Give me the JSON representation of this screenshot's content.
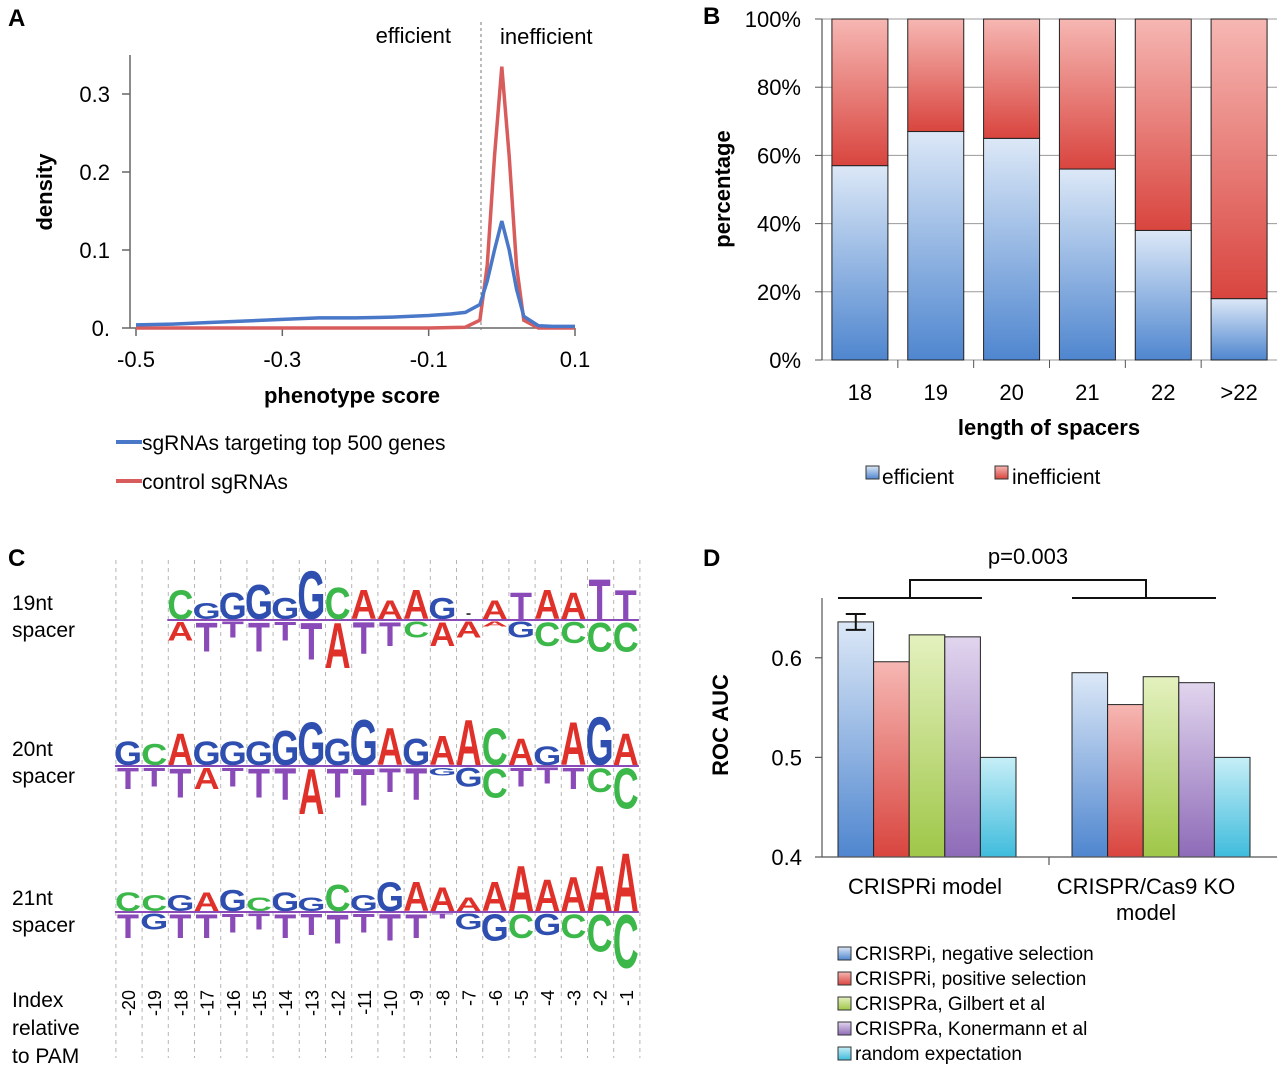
{
  "chart_data": [
    {
      "panel": "A",
      "type": "line",
      "xlabel": "phenotype score",
      "ylabel": "density",
      "xlim": [
        -0.5,
        0.1
      ],
      "ylim": [
        0,
        0.35
      ],
      "x_ticks": [
        "-0.5",
        "-0.3",
        "-0.1",
        "0.1"
      ],
      "y_ticks": [
        "0.",
        "0.1",
        "0.2",
        "0.3"
      ],
      "annotations": {
        "left_of_threshold": "efficient",
        "right_of_threshold": "inefficient",
        "threshold_x": -0.03
      },
      "series": [
        {
          "name": "sgRNAs targeting top 500 genes",
          "color": "#4a78c8",
          "x": [
            -0.5,
            -0.45,
            -0.4,
            -0.35,
            -0.3,
            -0.25,
            -0.2,
            -0.15,
            -0.1,
            -0.07,
            -0.05,
            -0.03,
            -0.02,
            -0.01,
            0.0,
            0.01,
            0.02,
            0.03,
            0.05,
            0.07,
            0.1
          ],
          "y": [
            0.004,
            0.005,
            0.007,
            0.009,
            0.011,
            0.013,
            0.013,
            0.014,
            0.016,
            0.018,
            0.02,
            0.03,
            0.06,
            0.1,
            0.137,
            0.1,
            0.05,
            0.015,
            0.003,
            0.002,
            0.002
          ]
        },
        {
          "name": "control sgRNAs",
          "color": "#d95c5c",
          "x": [
            -0.5,
            -0.3,
            -0.1,
            -0.05,
            -0.03,
            -0.02,
            -0.01,
            0.0,
            0.01,
            0.02,
            0.03,
            0.05,
            0.1
          ],
          "y": [
            0.0,
            0.0,
            0.0,
            0.001,
            0.01,
            0.08,
            0.22,
            0.335,
            0.22,
            0.08,
            0.01,
            0.0,
            0.0
          ]
        }
      ]
    },
    {
      "panel": "B",
      "type": "bar",
      "stacked": true,
      "xlabel": "length of spacers",
      "ylabel": "percentage",
      "categories": [
        "18",
        "19",
        "20",
        "21",
        "22",
        ">22"
      ],
      "y_ticks": [
        "0%",
        "20%",
        "40%",
        "60%",
        "80%",
        "100%"
      ],
      "ylim": [
        0,
        100
      ],
      "series": [
        {
          "name": "efficient",
          "color": "#6fa0d8",
          "values": [
            57,
            67,
            65,
            56,
            38,
            18
          ]
        },
        {
          "name": "inefficient",
          "color": "#e06a6a",
          "values": [
            43,
            33,
            35,
            44,
            62,
            82
          ]
        }
      ]
    },
    {
      "panel": "D",
      "type": "bar",
      "ylabel": "ROC AUC",
      "categories": [
        "CRISPRi model",
        "CRISPR/Cas9 KO model"
      ],
      "ylim": [
        0.4,
        0.66
      ],
      "y_ticks": [
        "0.4",
        "0.5",
        "0.6"
      ],
      "annotation": "p=0.003",
      "series": [
        {
          "name": "CRISRPi, negative selection",
          "color": "#6fa0d8",
          "values": [
            0.636,
            0.585
          ],
          "error": [
            0.008,
            0
          ]
        },
        {
          "name": "CRISPRi, positive selection",
          "color": "#e06a6a",
          "values": [
            0.596,
            0.553
          ]
        },
        {
          "name": "CRISPRa, Gilbert et al",
          "color": "#b5d46a",
          "values": [
            0.623,
            0.581
          ]
        },
        {
          "name": "CRISPRa, Konermann et al",
          "color": "#a088c0",
          "values": [
            0.621,
            0.575
          ]
        },
        {
          "name": "random expectation",
          "color": "#5ec8e0",
          "values": [
            0.5,
            0.5
          ]
        }
      ]
    }
  ],
  "panels": {
    "a": {
      "label": "A"
    },
    "b": {
      "label": "B"
    },
    "c": {
      "label": "C",
      "rows": [
        {
          "line1": "19nt",
          "line2": "spacer"
        },
        {
          "line1": "20nt",
          "line2": "spacer"
        },
        {
          "line1": "21nt",
          "line2": "spacer"
        }
      ],
      "index_label": [
        "Index",
        "relative",
        "to PAM"
      ],
      "index_values": [
        "-20",
        "-19",
        "-18",
        "-17",
        "-16",
        "-15",
        "-14",
        "-13",
        "-12",
        "-11",
        "-10",
        "-9",
        "-8",
        "-7",
        "-6",
        "-5",
        "-4",
        "-3",
        "-2",
        "-1"
      ],
      "base_colors": {
        "A": "#e0302a",
        "C": "#3cb84a",
        "G": "#2f4fb0",
        "T": "#8a4bb8"
      },
      "logos": [
        {
          "start": 2,
          "up": [
            [
              "C",
              0.55
            ],
            [
              "G",
              0.3
            ],
            [
              "G",
              0.5
            ],
            [
              "G",
              0.65
            ],
            [
              "G",
              0.4
            ],
            [
              "G",
              0.9
            ],
            [
              "C",
              0.6
            ],
            [
              "A",
              0.55
            ],
            [
              "A",
              0.35
            ],
            [
              "A",
              0.55
            ],
            [
              "G",
              0.4
            ],
            [
              "-",
              0.05
            ],
            [
              "A",
              0.35
            ],
            [
              "T",
              0.5
            ],
            [
              "A",
              0.55
            ],
            [
              "A",
              0.5
            ],
            [
              "T",
              0.75
            ],
            [
              "T",
              0.55
            ]
          ],
          "down": [
            [
              "A",
              0.35
            ],
            [
              "T",
              0.55
            ],
            [
              "T",
              0.3
            ],
            [
              "T",
              0.55
            ],
            [
              "T",
              0.35
            ],
            [
              "T",
              0.7
            ],
            [
              "A",
              0.85
            ],
            [
              "T",
              0.6
            ],
            [
              "T",
              0.45
            ],
            [
              "C",
              0.3
            ],
            [
              "A",
              0.45
            ],
            [
              "A",
              0.3
            ],
            [
              "A",
              0.1
            ],
            [
              "G",
              0.3
            ],
            [
              "C",
              0.45
            ],
            [
              "C",
              0.4
            ],
            [
              "C",
              0.55
            ],
            [
              "C",
              0.55
            ]
          ]
        },
        {
          "start": 0,
          "up": [
            [
              "G",
              0.45
            ],
            [
              "C",
              0.4
            ],
            [
              "A",
              0.6
            ],
            [
              "G",
              0.45
            ],
            [
              "G",
              0.45
            ],
            [
              "G",
              0.45
            ],
            [
              "G",
              0.65
            ],
            [
              "G",
              0.8
            ],
            [
              "G",
              0.5
            ],
            [
              "G",
              0.85
            ],
            [
              "A",
              0.7
            ],
            [
              "G",
              0.5
            ],
            [
              "A",
              0.55
            ],
            [
              "A",
              0.85
            ],
            [
              "C",
              0.7
            ],
            [
              "A",
              0.5
            ],
            [
              "G",
              0.35
            ],
            [
              "A",
              0.8
            ],
            [
              "G",
              0.9
            ],
            [
              "A",
              0.6
            ]
          ],
          "down": [
            [
              "T",
              0.4
            ],
            [
              "T",
              0.35
            ],
            [
              "T",
              0.55
            ],
            [
              "A",
              0.4
            ],
            [
              "T",
              0.35
            ],
            [
              "T",
              0.55
            ],
            [
              "T",
              0.6
            ],
            [
              "A",
              0.85
            ],
            [
              "T",
              0.55
            ],
            [
              "T",
              0.7
            ],
            [
              "T",
              0.45
            ],
            [
              "T",
              0.6
            ],
            [
              "G",
              0.15
            ],
            [
              "G",
              0.35
            ],
            [
              "C",
              0.55
            ],
            [
              "T",
              0.35
            ],
            [
              "T",
              0.3
            ],
            [
              "T",
              0.4
            ],
            [
              "C",
              0.45
            ],
            [
              "C",
              0.75
            ]
          ]
        },
        {
          "start": 0,
          "up": [
            [
              "C",
              0.35
            ],
            [
              "C",
              0.3
            ],
            [
              "G",
              0.3
            ],
            [
              "A",
              0.35
            ],
            [
              "G",
              0.4
            ],
            [
              "C",
              0.25
            ],
            [
              "G",
              0.35
            ],
            [
              "G",
              0.25
            ],
            [
              "C",
              0.5
            ],
            [
              "G",
              0.3
            ],
            [
              "G",
              0.55
            ],
            [
              "A",
              0.55
            ],
            [
              "A",
              0.45
            ],
            [
              "A",
              0.25
            ],
            [
              "A",
              0.55
            ],
            [
              "A",
              0.85
            ],
            [
              "A",
              0.6
            ],
            [
              "A",
              0.65
            ],
            [
              "A",
              0.85
            ],
            [
              "A",
              1.1
            ]
          ],
          "down": [
            [
              "T",
              0.45
            ],
            [
              "G",
              0.3
            ],
            [
              "T",
              0.45
            ],
            [
              "T",
              0.45
            ],
            [
              "T",
              0.35
            ],
            [
              "T",
              0.3
            ],
            [
              "T",
              0.45
            ],
            [
              "T",
              0.4
            ],
            [
              "T",
              0.55
            ],
            [
              "T",
              0.35
            ],
            [
              "T",
              0.5
            ],
            [
              "T",
              0.45
            ],
            [
              "T",
              0.1
            ],
            [
              "G",
              0.3
            ],
            [
              "G",
              0.5
            ],
            [
              "C",
              0.45
            ],
            [
              "G",
              0.4
            ],
            [
              "C",
              0.45
            ],
            [
              "C",
              0.7
            ],
            [
              "C",
              1.0
            ]
          ]
        }
      ]
    },
    "d": {
      "label": "D"
    }
  }
}
